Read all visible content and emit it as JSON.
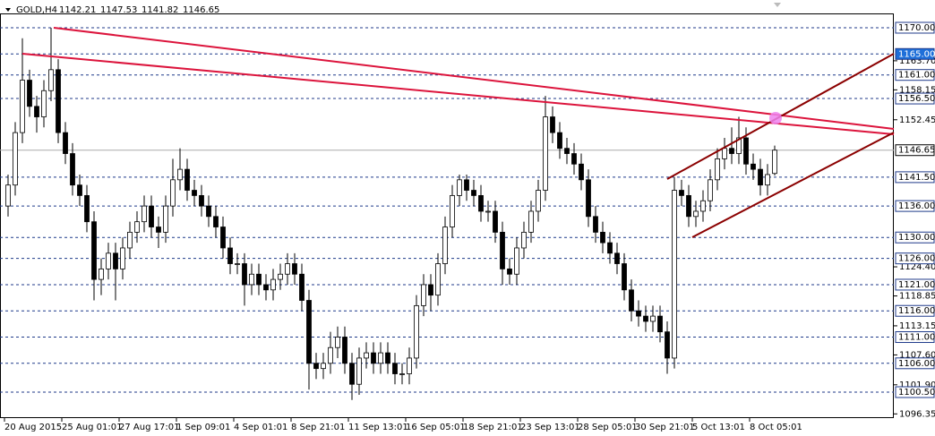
{
  "chart_data": {
    "type": "candlestick",
    "symbol": "GOLD,H4",
    "categories": [
      "20 Aug 2015",
      null,
      null,
      null,
      null,
      null,
      null,
      null,
      "25 Aug 01:01",
      null,
      null,
      null,
      null,
      null,
      null,
      null,
      "27 Aug 17:01",
      null,
      null,
      null,
      null,
      null,
      null,
      null,
      "1 Sep 09:01",
      null,
      null,
      null,
      null,
      null,
      null,
      null,
      "4 Sep 01:01",
      null,
      null,
      null,
      null,
      null,
      null,
      null,
      "8 Sep 21:01",
      null,
      null,
      null,
      null,
      null,
      null,
      null,
      "11 Sep 13:01",
      null,
      null,
      null,
      null,
      null,
      null,
      null,
      "16 Sep 05:01",
      null,
      null,
      null,
      null,
      null,
      null,
      null,
      "18 Sep 21:01",
      null,
      null,
      null,
      null,
      null,
      null,
      null,
      "23 Sep 13:01",
      null,
      null,
      null,
      null,
      null,
      null,
      null,
      "28 Sep 05:01",
      null,
      null,
      null,
      null,
      null,
      null,
      null,
      "30 Sep 21:01",
      null,
      null,
      null,
      null,
      null,
      null,
      null,
      "5 Oct 13:01",
      null,
      null,
      null,
      null,
      null,
      null,
      null,
      "8 Oct 05:01",
      null,
      null,
      null
    ],
    "open": [
      1136,
      1140,
      1150,
      1160,
      1155,
      1153,
      1158,
      1162,
      1150,
      1146,
      1140,
      1138,
      1133,
      1122,
      1124,
      1127,
      1124,
      1128,
      1131,
      1133,
      1136,
      1132,
      1131,
      1136,
      1141,
      1143,
      1139,
      1138,
      1136,
      1134,
      1132,
      1128,
      1125,
      1125,
      1121,
      1123,
      1121,
      1120,
      1122,
      1123,
      1125,
      1123,
      1118,
      1106,
      1105,
      1106,
      1109,
      1111,
      1106,
      1102,
      1107,
      1108,
      1106,
      1108,
      1106,
      1104,
      1104,
      1107,
      1117,
      1121,
      1119,
      1125,
      1132,
      1138,
      1141,
      1139,
      1138,
      1135,
      1135,
      1131,
      1124,
      1123,
      1128,
      1131,
      1135,
      1139,
      1153,
      1150,
      1147,
      1146,
      1144,
      1141,
      1134,
      1131,
      1129,
      1127,
      1125,
      1120,
      1116,
      1115,
      1114,
      1115,
      1112,
      1107,
      1139,
      1138,
      1134,
      1135,
      1137,
      1141,
      1145,
      1147,
      1146,
      1149,
      1144,
      1143,
      1140,
      1142.21
    ],
    "high": [
      1142,
      1152,
      1168,
      1162,
      1157,
      1160,
      1170,
      1164,
      1152,
      1148,
      1142,
      1140,
      1135,
      1126,
      1129,
      1129,
      1130,
      1133,
      1135,
      1138,
      1138,
      1134,
      1138,
      1145,
      1147,
      1145,
      1141,
      1140,
      1138,
      1136,
      1134,
      1130,
      1127,
      1127,
      1125,
      1125,
      1123,
      1124,
      1125,
      1127,
      1127,
      1125,
      1120,
      1108,
      1108,
      1112,
      1113,
      1113,
      1108,
      1109,
      1110,
      1110,
      1110,
      1110,
      1108,
      1106,
      1109,
      1119,
      1123,
      1123,
      1127,
      1134,
      1140,
      1142,
      1142,
      1141,
      1140,
      1137,
      1137,
      1133,
      1126,
      1130,
      1133,
      1137,
      1141,
      1157,
      1155,
      1152,
      1149,
      1148,
      1146,
      1143,
      1136,
      1133,
      1131,
      1129,
      1127,
      1122,
      1118,
      1117,
      1117,
      1117,
      1114,
      1141.5,
      1141,
      1140,
      1137,
      1139,
      1143,
      1147,
      1149,
      1151,
      1153,
      1151,
      1146,
      1145,
      1144,
      1147.53
    ],
    "low": [
      1134,
      1138,
      1148,
      1153,
      1150,
      1151,
      1156,
      1148,
      1144,
      1138,
      1136,
      1131,
      1118,
      1119,
      1122,
      1118,
      1122,
      1126,
      1129,
      1131,
      1130,
      1128,
      1129,
      1134,
      1139,
      1137,
      1136,
      1134,
      1132,
      1130,
      1126,
      1123,
      1123,
      1117,
      1119,
      1119,
      1118,
      1118,
      1120,
      1121,
      1121,
      1116,
      1101,
      1103,
      1103,
      1104,
      1107,
      1104,
      1099,
      1100,
      1105,
      1104,
      1104,
      1104,
      1102,
      1102,
      1102,
      1105,
      1115,
      1116,
      1117,
      1123,
      1130,
      1136,
      1137,
      1136,
      1133,
      1133,
      1129,
      1121,
      1121,
      1121,
      1126,
      1129,
      1133,
      1137,
      1148,
      1145,
      1144,
      1142,
      1139,
      1132,
      1129,
      1127,
      1125,
      1123,
      1118,
      1114,
      1113,
      1112,
      1112,
      1110,
      1104,
      1105,
      1136,
      1132,
      1132,
      1133,
      1135,
      1139,
      1143,
      1144,
      1144,
      1142,
      1141,
      1138,
      1138,
      1141.82
    ],
    "close": [
      1140,
      1150,
      1160,
      1155,
      1153,
      1158,
      1162,
      1150,
      1146,
      1140,
      1138,
      1133,
      1122,
      1124,
      1127,
      1124,
      1128,
      1131,
      1133,
      1136,
      1132,
      1131,
      1136,
      1141,
      1143,
      1139,
      1138,
      1136,
      1134,
      1132,
      1128,
      1125,
      1125,
      1121,
      1123,
      1121,
      1120,
      1122,
      1123,
      1125,
      1123,
      1118,
      1106,
      1105,
      1106,
      1109,
      1111,
      1106,
      1102,
      1107,
      1108,
      1106,
      1108,
      1106,
      1104,
      1104,
      1107,
      1117,
      1121,
      1119,
      1125,
      1132,
      1138,
      1141,
      1139,
      1138,
      1135,
      1135,
      1131,
      1124,
      1123,
      1128,
      1131,
      1135,
      1139,
      1153,
      1150,
      1147,
      1146,
      1144,
      1141,
      1134,
      1131,
      1129,
      1127,
      1125,
      1120,
      1116,
      1115,
      1114,
      1115,
      1112,
      1107,
      1139,
      1138,
      1134,
      1135,
      1137,
      1141,
      1145,
      1147,
      1146,
      1149,
      1144,
      1143,
      1140,
      1142,
      1146.65
    ],
    "ylim": [
      1095.55,
      1172.73
    ],
    "yticks": [
      {
        "value": 1163.7,
        "label": "1163.70"
      },
      {
        "value": 1158.15,
        "label": "1158.15"
      },
      {
        "value": 1152.45,
        "label": "1152.45"
      },
      {
        "value": 1124.4,
        "label": "1124.40"
      },
      {
        "value": 1118.85,
        "label": "1118.85"
      },
      {
        "value": 1113.15,
        "label": "1113.15"
      },
      {
        "value": 1107.6,
        "label": "1107.60"
      },
      {
        "value": 1101.9,
        "label": "1101.90"
      },
      {
        "value": 1096.35,
        "label": "1096.35"
      }
    ],
    "levels": [
      {
        "value": 1170,
        "label": "1170.00"
      },
      {
        "value": 1165,
        "label": "1165.00"
      },
      {
        "value": 1161,
        "label": "1161.00"
      },
      {
        "value": 1156.5,
        "label": "1156.50"
      },
      {
        "value": 1141.5,
        "label": "1141.50"
      },
      {
        "value": 1136,
        "label": "1136.00"
      },
      {
        "value": 1130,
        "label": "1130.00"
      },
      {
        "value": 1126,
        "label": "1126.00"
      },
      {
        "value": 1121,
        "label": "1121.00"
      },
      {
        "value": 1116,
        "label": "1116.00"
      },
      {
        "value": 1111,
        "label": "1111.00"
      },
      {
        "value": 1106,
        "label": "1106.00"
      },
      {
        "value": 1100.5,
        "label": "1100.50"
      }
    ],
    "selected_level": 1,
    "level_color": "#1f3a8a",
    "selected_color": "#1e6fd9",
    "candle_color": "#000000",
    "grid": false
  }
}
